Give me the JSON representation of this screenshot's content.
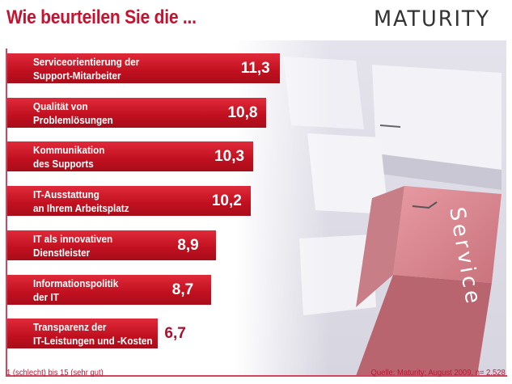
{
  "title": "Wie beurteilen Sie die ...",
  "logo_text": "MATURITY",
  "photo_key_text": "Service",
  "colors": {
    "bar": "#c8102e",
    "title": "#c4122f",
    "value_outside": "#a8102e"
  },
  "chart_data": {
    "type": "bar",
    "orientation": "horizontal",
    "title": "Wie beurteilen Sie die ...",
    "categories": [
      [
        "Serviceorientierung der",
        "Support-Mitarbeiter"
      ],
      [
        "Qualität von",
        "Problemlösungen"
      ],
      [
        "Kommunikation",
        "des Supports"
      ],
      [
        "IT-Ausstattung",
        "an Ihrem Arbeitsplatz"
      ],
      [
        "IT als innovativen",
        "Dienstleister"
      ],
      [
        "Informationspolitik",
        "der IT"
      ],
      [
        "Transparenz der",
        "IT-Leistungen und -Kosten"
      ]
    ],
    "values": [
      11.3,
      10.8,
      10.3,
      10.2,
      8.9,
      8.7,
      6.7
    ],
    "value_labels": [
      "11,3",
      "10,8",
      "10,3",
      "10,2",
      "8,9",
      "8,7",
      "6,7"
    ],
    "xlim": [
      1,
      15
    ],
    "grid": false
  },
  "footer": {
    "scale_note": "1 (schlecht) bis 15 (sehr gut)",
    "source": "Quelle: Maturity; August 2009, n= 2.528"
  }
}
